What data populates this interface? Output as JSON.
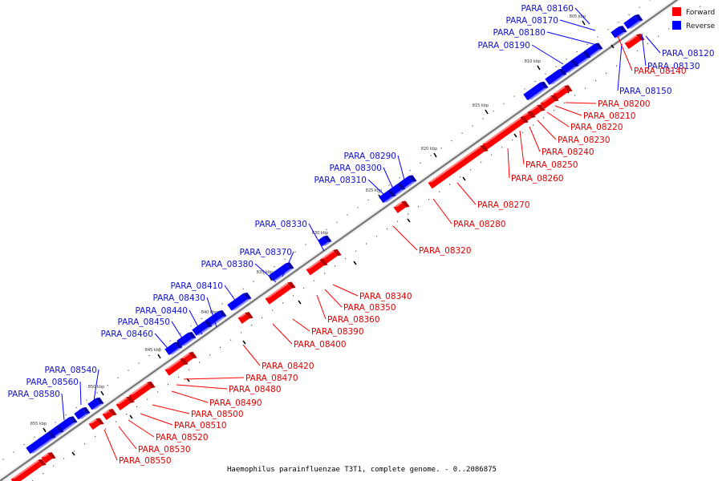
{
  "colors": {
    "forward": "#ff0000",
    "forward_shade": "#b30000",
    "forward_top": "#ff8080",
    "reverse": "#0000ff",
    "reverse_shade": "#0000a8",
    "reverse_top": "#8080ff",
    "forward_text": "#e00000",
    "reverse_text": "#1010d0",
    "backbone": "#777777"
  },
  "legend": {
    "forward_label": "Forward",
    "reverse_label": "Reverse"
  },
  "caption": "Haemophilus parainfluenzae T3T1, complete genome. - 0..2086875",
  "ticks": [
    "805 kbp",
    "810 kbp",
    "815 kbp",
    "820 kbp",
    "825 kbp",
    "830 kbp",
    "835 kbp",
    "840 kbp",
    "845 kbp",
    "850 kbp",
    "855 kbp"
  ],
  "reverse_genes": [
    "PARA_08120",
    "PARA_08130",
    "PARA_08150",
    "PARA_08160",
    "PARA_08170",
    "PARA_08180",
    "PARA_08190",
    "PARA_08290",
    "PARA_08300",
    "PARA_08310",
    "PARA_08330",
    "PARA_08370",
    "PARA_08380",
    "PARA_08410",
    "PARA_08430",
    "PARA_08440",
    "PARA_08450",
    "PARA_08460",
    "PARA_08540",
    "PARA_08560",
    "PARA_08580"
  ],
  "forward_genes": [
    "PARA_08140",
    "PARA_08200",
    "PARA_08210",
    "PARA_08220",
    "PARA_08230",
    "PARA_08240",
    "PARA_08250",
    "PARA_08260",
    "PARA_08270",
    "PARA_08280",
    "PARA_08320",
    "PARA_08340",
    "PARA_08350",
    "PARA_08360",
    "PARA_08390",
    "PARA_08400",
    "PARA_08420",
    "PARA_08470",
    "PARA_08480",
    "PARA_08490",
    "PARA_08500",
    "PARA_08510",
    "PARA_08520",
    "PARA_08530",
    "PARA_08550"
  ]
}
